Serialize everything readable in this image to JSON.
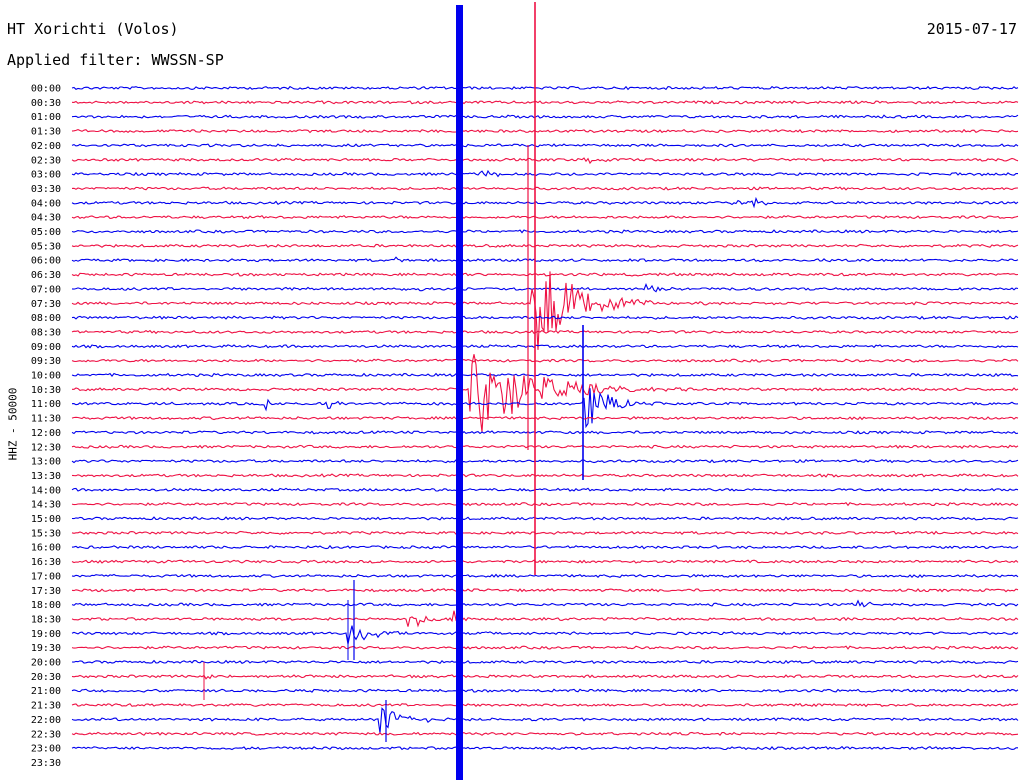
{
  "header": {
    "station": "HT Xorichti (Volos)",
    "filter": "Applied filter: WWSSN-SP",
    "date": "2015-07-17"
  },
  "chart_data": {
    "type": "line",
    "ylabel": "HHZ - 50000",
    "row_labels": [
      "00:00",
      "00:30",
      "01:00",
      "01:30",
      "02:00",
      "02:30",
      "03:00",
      "03:30",
      "04:00",
      "04:30",
      "05:00",
      "05:30",
      "06:00",
      "06:30",
      "07:00",
      "07:30",
      "08:00",
      "08:30",
      "09:00",
      "09:30",
      "10:00",
      "10:30",
      "11:00",
      "11:30",
      "12:00",
      "12:30",
      "13:00",
      "13:30",
      "14:00",
      "14:30",
      "15:00",
      "15:30",
      "16:00",
      "16:30",
      "17:00",
      "17:30",
      "18:00",
      "18:30",
      "19:00",
      "19:30",
      "20:00",
      "20:30",
      "21:00",
      "21:30",
      "22:00",
      "22:30",
      "23:00",
      "23:30"
    ],
    "trace_colors": [
      "#0000ee",
      "#ee1144"
    ],
    "events": [
      {
        "row": 5,
        "x": 0.54,
        "amp": 5,
        "decay": 0.012,
        "color": "#ee1144"
      },
      {
        "row": 6,
        "x": 0.43,
        "amp": 6,
        "decay": 0.015,
        "color": "#0000ee"
      },
      {
        "row": 8,
        "x": 0.69,
        "amp": 5,
        "decay": 0.012,
        "color": "#0000ee"
      },
      {
        "row": 8,
        "x": 0.72,
        "amp": 6,
        "decay": 0.008,
        "color": "#0000ee"
      },
      {
        "row": 12,
        "x": 0.335,
        "amp": 6,
        "decay": 0.008,
        "color": "#0000ee"
      },
      {
        "row": 14,
        "x": 0.225,
        "amp": 6,
        "decay": 0.008,
        "color": "#0000ee"
      },
      {
        "row": 14,
        "x": 0.36,
        "amp": 6,
        "decay": 0.008,
        "color": "#0000ee"
      },
      {
        "row": 14,
        "x": 0.605,
        "amp": 7,
        "decay": 0.012,
        "color": "#0000ee"
      },
      {
        "row": 15,
        "x": 0.485,
        "amp": 60,
        "decay": 0.04,
        "color": "#ee1144"
      },
      {
        "row": 21,
        "x": 0.42,
        "amp": 60,
        "decay": 0.05,
        "color": "#0000ee"
      },
      {
        "row": 22,
        "x": 0.203,
        "amp": 10,
        "decay": 0.006,
        "color": "#0000ee"
      },
      {
        "row": 22,
        "x": 0.27,
        "amp": 8,
        "decay": 0.006,
        "color": "#0000ee"
      },
      {
        "row": 22,
        "x": 0.54,
        "amp": 35,
        "decay": 0.02,
        "color": "#0000ee"
      },
      {
        "row": 36,
        "x": 0.83,
        "amp": 5,
        "decay": 0.01,
        "color": "#0000ee"
      },
      {
        "row": 37,
        "x": 0.355,
        "amp": 10,
        "decay": 0.02,
        "color": "#ee1144"
      },
      {
        "row": 37,
        "x": 0.402,
        "amp": 9,
        "decay": 0.01,
        "color": "#ee1144"
      },
      {
        "row": 38,
        "x": 0.29,
        "amp": 18,
        "decay": 0.02,
        "color": "#0000ee"
      },
      {
        "row": 41,
        "x": 0.14,
        "amp": 14,
        "decay": 0.004,
        "color": "#ee1144"
      },
      {
        "row": 44,
        "x": 0.325,
        "amp": 18,
        "decay": 0.02,
        "color": "#0000ee"
      }
    ]
  }
}
